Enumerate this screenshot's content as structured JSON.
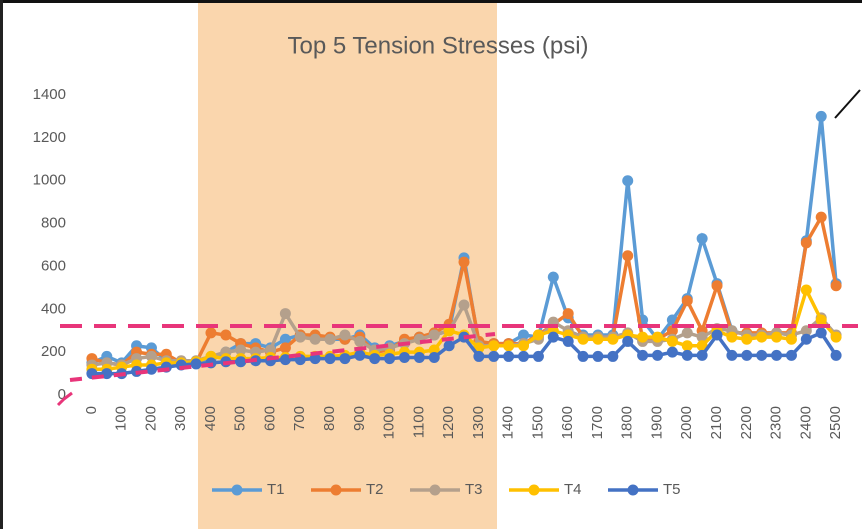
{
  "chart_data": {
    "type": "line",
    "title": "Top 5 Tension Stresses (psi)",
    "x": [
      0,
      50,
      100,
      150,
      200,
      250,
      300,
      350,
      400,
      450,
      500,
      550,
      600,
      650,
      700,
      750,
      800,
      850,
      900,
      950,
      1000,
      1050,
      1100,
      1150,
      1200,
      1250,
      1300,
      1350,
      1400,
      1450,
      1500,
      1550,
      1600,
      1650,
      1700,
      1750,
      1800,
      1850,
      1900,
      1950,
      2000,
      2050,
      2100,
      2150,
      2200,
      2250,
      2300,
      2350,
      2400,
      2450,
      2500
    ],
    "xlim": [
      -40,
      2540
    ],
    "xticks": [
      0,
      100,
      200,
      300,
      400,
      500,
      600,
      700,
      800,
      900,
      1000,
      1100,
      1200,
      1300,
      1400,
      1500,
      1600,
      1700,
      1800,
      1900,
      2000,
      2100,
      2200,
      2300,
      2400,
      2500
    ],
    "ylim": [
      0,
      1400
    ],
    "yticks": [
      0,
      200,
      400,
      600,
      800,
      1000,
      1200,
      1400
    ],
    "grid": false,
    "legend": "bottom",
    "series": [
      {
        "name": "T1",
        "color": "#5b9bd5",
        "values": [
          150,
          180,
          150,
          230,
          220,
          160,
          150,
          150,
          170,
          200,
          240,
          240,
          220,
          260,
          280,
          270,
          260,
          260,
          280,
          220,
          230,
          250,
          270,
          280,
          300,
          640,
          240,
          240,
          240,
          280,
          270,
          550,
          360,
          280,
          280,
          280,
          1000,
          350,
          260,
          350,
          450,
          730,
          520,
          300,
          280,
          280,
          290,
          280,
          720,
          1300,
          520
        ]
      },
      {
        "name": "T2",
        "color": "#ed7d31",
        "values": [
          170,
          150,
          140,
          200,
          190,
          190,
          150,
          150,
          290,
          280,
          240,
          220,
          200,
          220,
          280,
          280,
          270,
          260,
          270,
          200,
          210,
          260,
          270,
          290,
          330,
          620,
          250,
          240,
          240,
          240,
          280,
          330,
          380,
          270,
          270,
          270,
          650,
          260,
          260,
          300,
          440,
          300,
          510,
          290,
          290,
          290,
          290,
          290,
          710,
          830,
          510
        ]
      },
      {
        "name": "T3",
        "color": "#b4a08c",
        "values": [
          140,
          150,
          140,
          170,
          180,
          160,
          160,
          160,
          180,
          200,
          210,
          200,
          210,
          380,
          270,
          260,
          260,
          280,
          250,
          210,
          220,
          240,
          260,
          280,
          300,
          420,
          230,
          230,
          230,
          240,
          260,
          340,
          300,
          270,
          270,
          270,
          290,
          250,
          250,
          260,
          290,
          270,
          310,
          300,
          280,
          280,
          290,
          280,
          300,
          360,
          280
        ]
      },
      {
        "name": "T4",
        "color": "#ffc000",
        "values": [
          120,
          120,
          130,
          140,
          140,
          150,
          150,
          155,
          180,
          170,
          170,
          170,
          175,
          175,
          180,
          180,
          180,
          185,
          200,
          185,
          190,
          200,
          200,
          210,
          300,
          280,
          220,
          230,
          230,
          230,
          280,
          300,
          280,
          260,
          260,
          260,
          280,
          270,
          270,
          250,
          230,
          230,
          300,
          270,
          260,
          270,
          270,
          260,
          490,
          350,
          270
        ]
      },
      {
        "name": "T5",
        "color": "#4472c4",
        "values": [
          100,
          100,
          100,
          110,
          120,
          130,
          140,
          145,
          150,
          155,
          155,
          160,
          160,
          165,
          165,
          170,
          170,
          170,
          185,
          170,
          170,
          175,
          175,
          175,
          230,
          270,
          180,
          180,
          180,
          180,
          180,
          270,
          250,
          180,
          180,
          180,
          250,
          185,
          185,
          200,
          185,
          185,
          280,
          185,
          185,
          185,
          185,
          185,
          260,
          290,
          185
        ]
      }
    ]
  }
}
